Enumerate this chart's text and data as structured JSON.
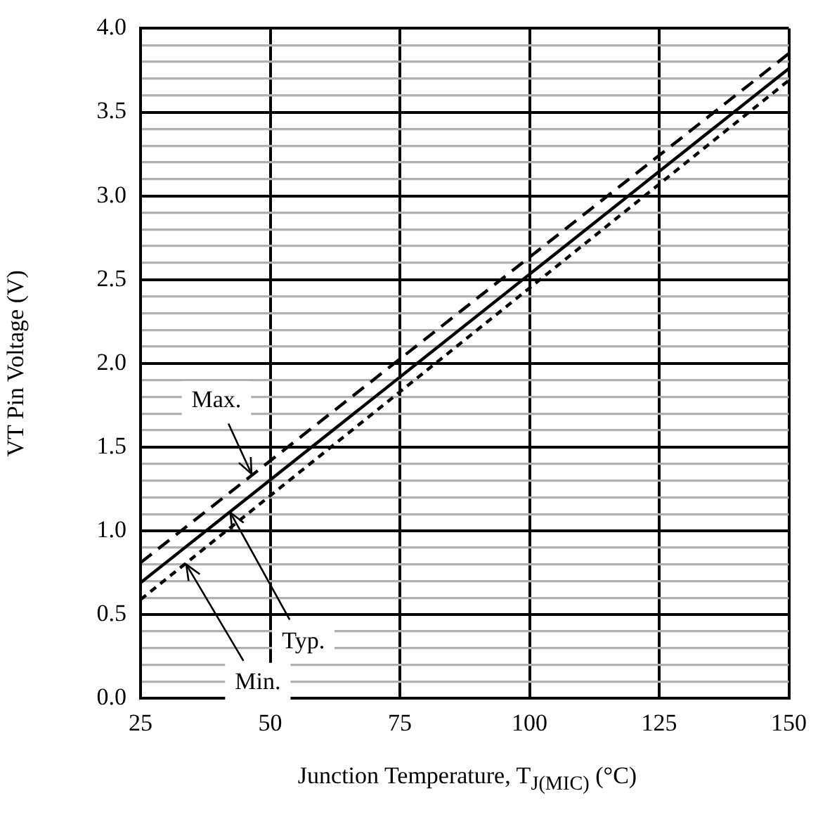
{
  "chart_data": {
    "type": "line",
    "xlabel": "Junction Temperature, T$_{J(MIC)}$ (°C)",
    "ylabel": "VT Pin Voltage (V)",
    "series": [
      {
        "color": "#000000",
        "line_style": "dashed",
        "values": [
          0.81,
          3.85
        ]
      },
      {
        "color": "#000000",
        "line_style": "solid",
        "values": [
          0.69,
          3.76
        ]
      },
      {
        "color": "#000000",
        "line_style": "dotted",
        "values": [
          0.59,
          3.69
        ]
      }
    ],
    "x": [
      25,
      150
    ],
    "xlim": [
      25,
      150
    ],
    "xticks": [
      25,
      50,
      75,
      100,
      125,
      150
    ],
    "ylim": [
      0,
      4
    ],
    "yticks": [
      {
        "value": 0,
        "label": "0.0"
      },
      {
        "value": 0.1,
        "label": null
      },
      {
        "value": 0.2,
        "label": null
      },
      {
        "value": 0.3,
        "label": null
      },
      {
        "value": 0.4,
        "label": null
      },
      {
        "value": 0.5,
        "label": "0.5"
      },
      {
        "value": 0.6,
        "label": null
      },
      {
        "value": 0.7,
        "label": null
      },
      {
        "value": 0.8,
        "label": null
      },
      {
        "value": 0.9,
        "label": null
      },
      {
        "value": 1,
        "label": "1.0"
      },
      {
        "value": 1.1,
        "label": null
      },
      {
        "value": 1.2,
        "label": null
      },
      {
        "value": 1.3,
        "label": null
      },
      {
        "value": 1.4,
        "label": null
      },
      {
        "value": 1.5,
        "label": "1.5"
      },
      {
        "value": 1.6,
        "label": null
      },
      {
        "value": 1.7,
        "label": null
      },
      {
        "value": 1.8,
        "label": null
      },
      {
        "value": 1.9,
        "label": null
      },
      {
        "value": 2,
        "label": "2.0"
      },
      {
        "value": 2.1,
        "label": null
      },
      {
        "value": 2.2,
        "label": null
      },
      {
        "value": 2.3,
        "label": null
      },
      {
        "value": 2.4,
        "label": null
      },
      {
        "value": 2.5,
        "label": "2.5"
      },
      {
        "value": 2.6,
        "label": null
      },
      {
        "value": 2.7,
        "label": null
      },
      {
        "value": 2.8,
        "label": null
      },
      {
        "value": 2.9,
        "label": null
      },
      {
        "value": 3,
        "label": "3.0"
      },
      {
        "value": 3.1,
        "label": null
      },
      {
        "value": 3.2,
        "label": null
      },
      {
        "value": 3.3,
        "label": null
      },
      {
        "value": 3.4,
        "label": null
      },
      {
        "value": 3.5,
        "label": "3.5"
      },
      {
        "value": 3.6,
        "label": null
      },
      {
        "value": 3.7,
        "label": null
      },
      {
        "value": 3.8,
        "label": null
      },
      {
        "value": 3.9,
        "label": null
      },
      {
        "value": 4,
        "label": "4.0"
      }
    ],
    "grid": true,
    "marker": "none",
    "legend": false,
    "annotations": [
      {
        "text": "Max.",
        "x": 46.4,
        "y": 1.34
      },
      {
        "text": "Typ.",
        "x": 42.3,
        "y": 1.11
      },
      {
        "text": "Min.",
        "x": 33.8,
        "y": 0.8
      }
    ]
  }
}
